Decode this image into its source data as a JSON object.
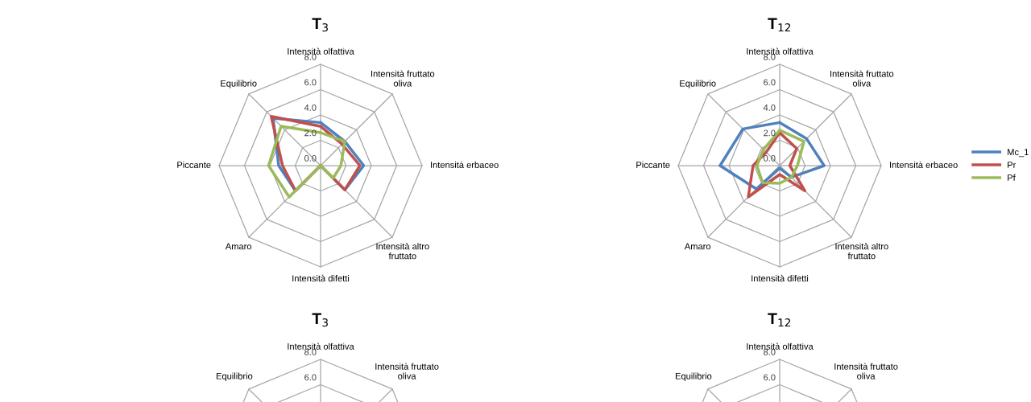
{
  "chart_data": [
    {
      "type": "radar",
      "title": "T$_{3}$",
      "categories": [
        "Intensità olfattiva",
        "Intensità fruttato\noliva",
        "Intensità erbaceo",
        "Intensità altro\nfruttato",
        "Intensità difetti",
        "Amaro",
        "Piccante",
        "Equilibrio"
      ],
      "ylim": [
        0,
        8
      ],
      "yticks": [
        {
          "value": 0,
          "label": "0.0"
        },
        {
          "value": 2,
          "label": "2.0"
        },
        {
          "value": 4,
          "label": "4.0"
        },
        {
          "value": 6,
          "label": "6.0"
        },
        {
          "value": 8,
          "label": "8.0"
        }
      ],
      "legend": false,
      "series": [
        {
          "color": "#4f81bd",
          "values": [
            3.4,
            2.7,
            3.4,
            2.7,
            0,
            2.8,
            3.3,
            5.3
          ]
        },
        {
          "color": "#c0504d",
          "values": [
            3.1,
            2.4,
            3.1,
            2.7,
            0,
            2.8,
            3.0,
            5.5
          ]
        },
        {
          "color": "#9bbb59",
          "values": [
            2.6,
            2.7,
            1.6,
            1.4,
            0,
            3.5,
            4.1,
            4.4
          ]
        }
      ]
    },
    {
      "type": "radar",
      "title": "T$_{12}$",
      "categories": [
        "Intensità olfattiva",
        "Intensità fruttato\noliva",
        "Intensità erbaceo",
        "Intensità altro\nfruttato",
        "Intensità difetti",
        "Amaro",
        "Piccante",
        "Equilibrio"
      ],
      "ylim": [
        0,
        8
      ],
      "yticks": [
        {
          "value": 0,
          "label": "0.0"
        },
        {
          "value": 2,
          "label": "2.0"
        },
        {
          "value": 4,
          "label": "4.0"
        },
        {
          "value": 6,
          "label": "6.0"
        },
        {
          "value": 8,
          "label": "8.0"
        }
      ],
      "legend": "right",
      "series": [
        {
          "name": "Mc_1",
          "color": "#4f81bd",
          "values": [
            3.4,
            3.0,
            3.5,
            1.3,
            0.2,
            2.6,
            4.7,
            4.1
          ]
        },
        {
          "name": "Pr",
          "color": "#c0504d",
          "values": [
            2.6,
            1.9,
            0.8,
            2.8,
            0.7,
            3.5,
            2.1,
            1.5
          ]
        },
        {
          "name": "Pf",
          "color": "#9bbb59",
          "values": [
            2.8,
            2.7,
            1.4,
            1.3,
            1.4,
            1.9,
            1.8,
            1.8
          ]
        }
      ]
    },
    {
      "type": "other",
      "title": "T$_{3}$",
      "annotations": [
        "Intensità olfattiva",
        "Intensità fruttato\noliva",
        "Equilibrio",
        "8.0",
        "6.0"
      ]
    },
    {
      "type": "other",
      "title": "T$_{12}$",
      "annotations": [
        "Intensità olfattiva",
        "Intensità fruttato\noliva",
        "Equilibrio",
        "8.0",
        "6.0"
      ]
    }
  ]
}
